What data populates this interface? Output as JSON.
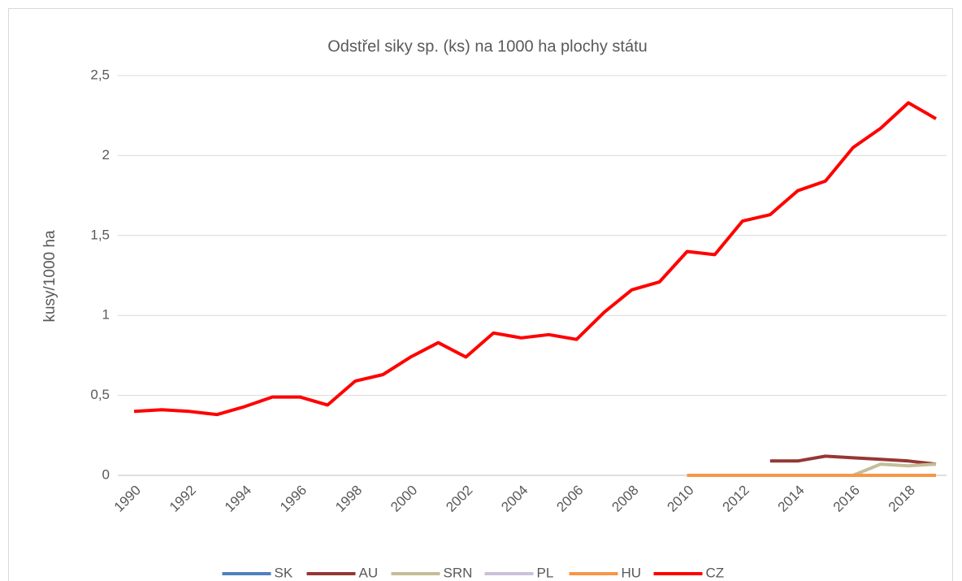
{
  "chart_data": {
    "type": "line",
    "title": "Odstřel siky sp. (ks) na 1000 ha plochy státu",
    "y_label": "kusy/1000 ha",
    "categories": [
      "1990",
      null,
      "1992",
      null,
      "1994",
      null,
      "1996",
      null,
      "1998",
      null,
      "2000",
      null,
      "2002",
      null,
      "2004",
      null,
      "2006",
      null,
      "2008",
      null,
      "2010",
      null,
      "2012",
      null,
      "2014",
      null,
      "2016",
      null,
      "2018",
      null
    ],
    "series": [
      {
        "name": "SK",
        "color": "#4f81bd",
        "values": [
          null,
          null,
          null,
          null,
          null,
          null,
          null,
          null,
          null,
          null,
          null,
          null,
          null,
          null,
          null,
          null,
          null,
          null,
          null,
          null,
          0,
          0,
          0,
          0,
          0,
          0,
          0,
          0,
          0,
          0
        ]
      },
      {
        "name": "AU",
        "color": "#953735",
        "values": [
          null,
          null,
          null,
          null,
          null,
          null,
          null,
          null,
          null,
          null,
          null,
          null,
          null,
          null,
          null,
          null,
          null,
          null,
          null,
          null,
          null,
          null,
          null,
          0.09,
          0.09,
          0.12,
          0.11,
          0.1,
          0.09,
          0.07
        ]
      },
      {
        "name": "SRN",
        "color": "#c4bd97",
        "values": [
          null,
          null,
          null,
          null,
          null,
          null,
          null,
          null,
          null,
          null,
          null,
          null,
          null,
          null,
          null,
          null,
          null,
          null,
          null,
          null,
          0,
          0,
          0,
          0,
          0,
          0,
          0,
          0.07,
          0.06,
          0.07
        ]
      },
      {
        "name": "PL",
        "color": "#ccc0da",
        "values": [
          null,
          null,
          null,
          null,
          null,
          null,
          null,
          null,
          null,
          null,
          null,
          null,
          null,
          null,
          null,
          null,
          null,
          null,
          null,
          null,
          0,
          0,
          0,
          0,
          0,
          0,
          0,
          0,
          0,
          0
        ]
      },
      {
        "name": "HU",
        "color": "#f79646",
        "values": [
          null,
          null,
          null,
          null,
          null,
          null,
          null,
          null,
          null,
          null,
          null,
          null,
          null,
          null,
          null,
          null,
          null,
          null,
          null,
          null,
          0,
          0,
          0,
          0,
          0,
          0,
          0,
          0,
          0,
          0
        ]
      },
      {
        "name": "CZ",
        "color": "#ff0000",
        "values": [
          0.4,
          0.41,
          0.4,
          0.38,
          0.43,
          0.49,
          0.49,
          0.44,
          0.59,
          0.63,
          0.74,
          0.83,
          0.74,
          0.89,
          0.86,
          0.88,
          0.85,
          1.02,
          1.16,
          1.21,
          1.4,
          1.38,
          1.59,
          1.63,
          1.78,
          1.84,
          2.05,
          2.17,
          2.33,
          2.23
        ]
      }
    ],
    "ylim": [
      0,
      2.5
    ],
    "yticks": [
      0,
      {
        "value": 0.5,
        "label": "0,5"
      },
      1,
      {
        "value": 1.5,
        "label": "1,5"
      },
      2,
      {
        "value": 2.5,
        "label": "2,5"
      }
    ],
    "grid": true,
    "legend": "bottom"
  }
}
